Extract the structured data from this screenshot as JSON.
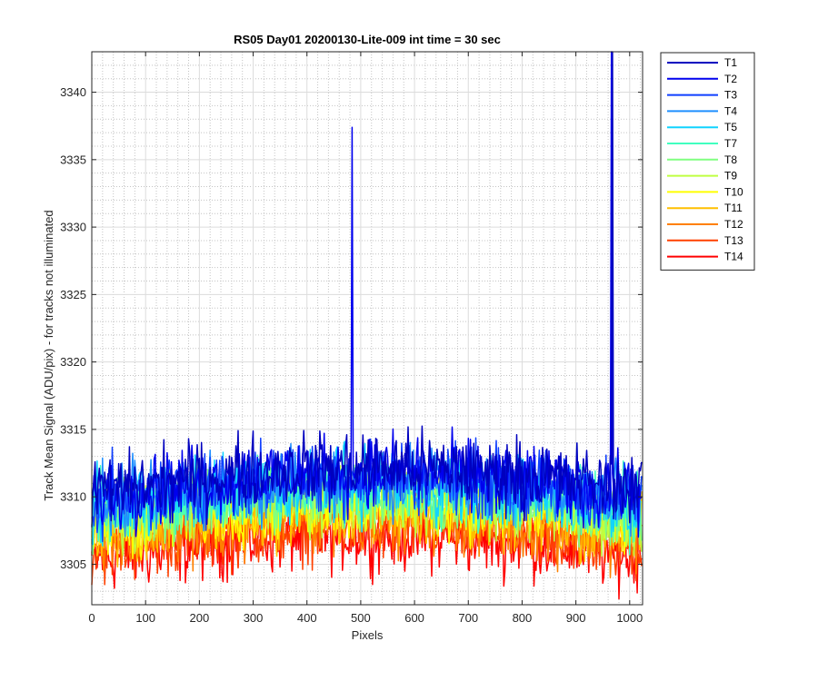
{
  "chart_data": {
    "type": "line",
    "title": "RS05 Day01 20200130-Lite-009 int time = 30 sec",
    "xlabel": "Pixels",
    "ylabel": "Track Mean Signal (ADU/pix) - for tracks not illuminated",
    "xlim": [
      0,
      1024
    ],
    "ylim": [
      3302,
      3343
    ],
    "xticks": [
      0,
      100,
      200,
      300,
      400,
      500,
      600,
      700,
      800,
      900,
      1000
    ],
    "yticks": [
      3305,
      3310,
      3315,
      3320,
      3325,
      3330,
      3335,
      3340
    ],
    "grid": true,
    "minor_grid": true,
    "legend_position": "outside-right-top",
    "series": [
      {
        "name": "T1",
        "color": "#0000bf",
        "level_left": 3310.3,
        "level_center": 3312.2,
        "level_right": 3310.6,
        "spikes": [
          [
            968,
            3343
          ]
        ]
      },
      {
        "name": "T2",
        "color": "#0000ee",
        "level_left": 3310.0,
        "level_center": 3311.9,
        "level_right": 3310.2,
        "spikes": [
          [
            484,
            3337.4
          ],
          [
            966,
            3343
          ]
        ]
      },
      {
        "name": "T3",
        "color": "#0f3fff",
        "level_left": 3309.7,
        "level_center": 3311.6,
        "level_right": 3309.9,
        "spikes": []
      },
      {
        "name": "T4",
        "color": "#1f8fff",
        "level_left": 3309.4,
        "level_center": 3311.3,
        "level_right": 3309.6,
        "spikes": []
      },
      {
        "name": "T5",
        "color": "#11d4ff",
        "level_left": 3309.1,
        "level_center": 3311.0,
        "level_right": 3309.3,
        "spikes": []
      },
      {
        "name": "T7",
        "color": "#40ffbf",
        "level_left": 3308.8,
        "level_center": 3310.6,
        "level_right": 3309.0,
        "spikes": []
      },
      {
        "name": "T8",
        "color": "#80ff80",
        "level_left": 3308.5,
        "level_center": 3310.3,
        "level_right": 3308.7,
        "spikes": []
      },
      {
        "name": "T9",
        "color": "#bfff40",
        "level_left": 3308.2,
        "level_center": 3310.0,
        "level_right": 3308.4,
        "spikes": []
      },
      {
        "name": "T10",
        "color": "#ffff00",
        "level_left": 3307.8,
        "level_center": 3309.6,
        "level_right": 3308.0,
        "spikes": []
      },
      {
        "name": "T11",
        "color": "#ffbf00",
        "level_left": 3307.3,
        "level_center": 3309.1,
        "level_right": 3307.5,
        "spikes": []
      },
      {
        "name": "T12",
        "color": "#ff8000",
        "level_left": 3306.8,
        "level_center": 3308.6,
        "level_right": 3307.0,
        "spikes": []
      },
      {
        "name": "T13",
        "color": "#ff4000",
        "level_left": 3306.1,
        "level_center": 3307.9,
        "level_right": 3306.3,
        "spikes": []
      },
      {
        "name": "T14",
        "color": "#ff0000",
        "level_left": 3305.4,
        "level_center": 3307.2,
        "level_right": 3305.6,
        "spikes": []
      }
    ]
  }
}
